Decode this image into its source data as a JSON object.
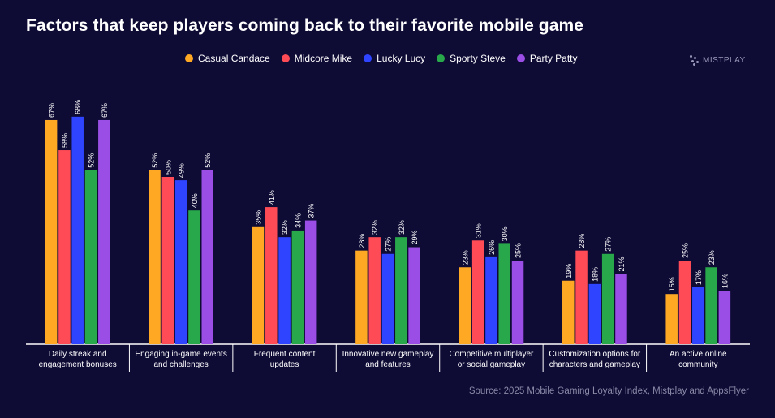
{
  "chart_data": {
    "type": "bar",
    "title": "Factors that keep players coming back to their favorite mobile game",
    "categories": [
      [
        "Daily streak and",
        "engagement bonuses"
      ],
      [
        "Engaging in-game events",
        "and challenges"
      ],
      [
        "Frequent content",
        "updates"
      ],
      [
        "Innovative new gameplay",
        "and features"
      ],
      [
        "Competitive multiplayer",
        "or social gameplay"
      ],
      [
        "Customization options for",
        "characters and gameplay"
      ],
      [
        "An active online",
        "community"
      ]
    ],
    "series": [
      {
        "name": "Casual Candace",
        "color": "#ffa824",
        "values": [
          67,
          52,
          35,
          28,
          23,
          19,
          15
        ]
      },
      {
        "name": "Midcore Mike",
        "color": "#ff4b55",
        "values": [
          58,
          50,
          41,
          32,
          31,
          28,
          25
        ]
      },
      {
        "name": "Lucky Lucy",
        "color": "#2f44ff",
        "values": [
          68,
          49,
          32,
          27,
          26,
          18,
          17
        ]
      },
      {
        "name": "Sporty Steve",
        "color": "#28a84a",
        "values": [
          52,
          40,
          34,
          32,
          30,
          27,
          23
        ]
      },
      {
        "name": "Party Patty",
        "color": "#9a4ee6",
        "values": [
          67,
          52,
          37,
          29,
          25,
          21,
          16
        ]
      }
    ],
    "value_suffix": "%",
    "ylim": [
      0,
      70
    ],
    "grid": false,
    "legend_position": "top-center"
  },
  "brand": "MISTPLAY",
  "source": "Source: 2025 Mobile Gaming Loyalty Index, Mistplay and AppsFlyer"
}
